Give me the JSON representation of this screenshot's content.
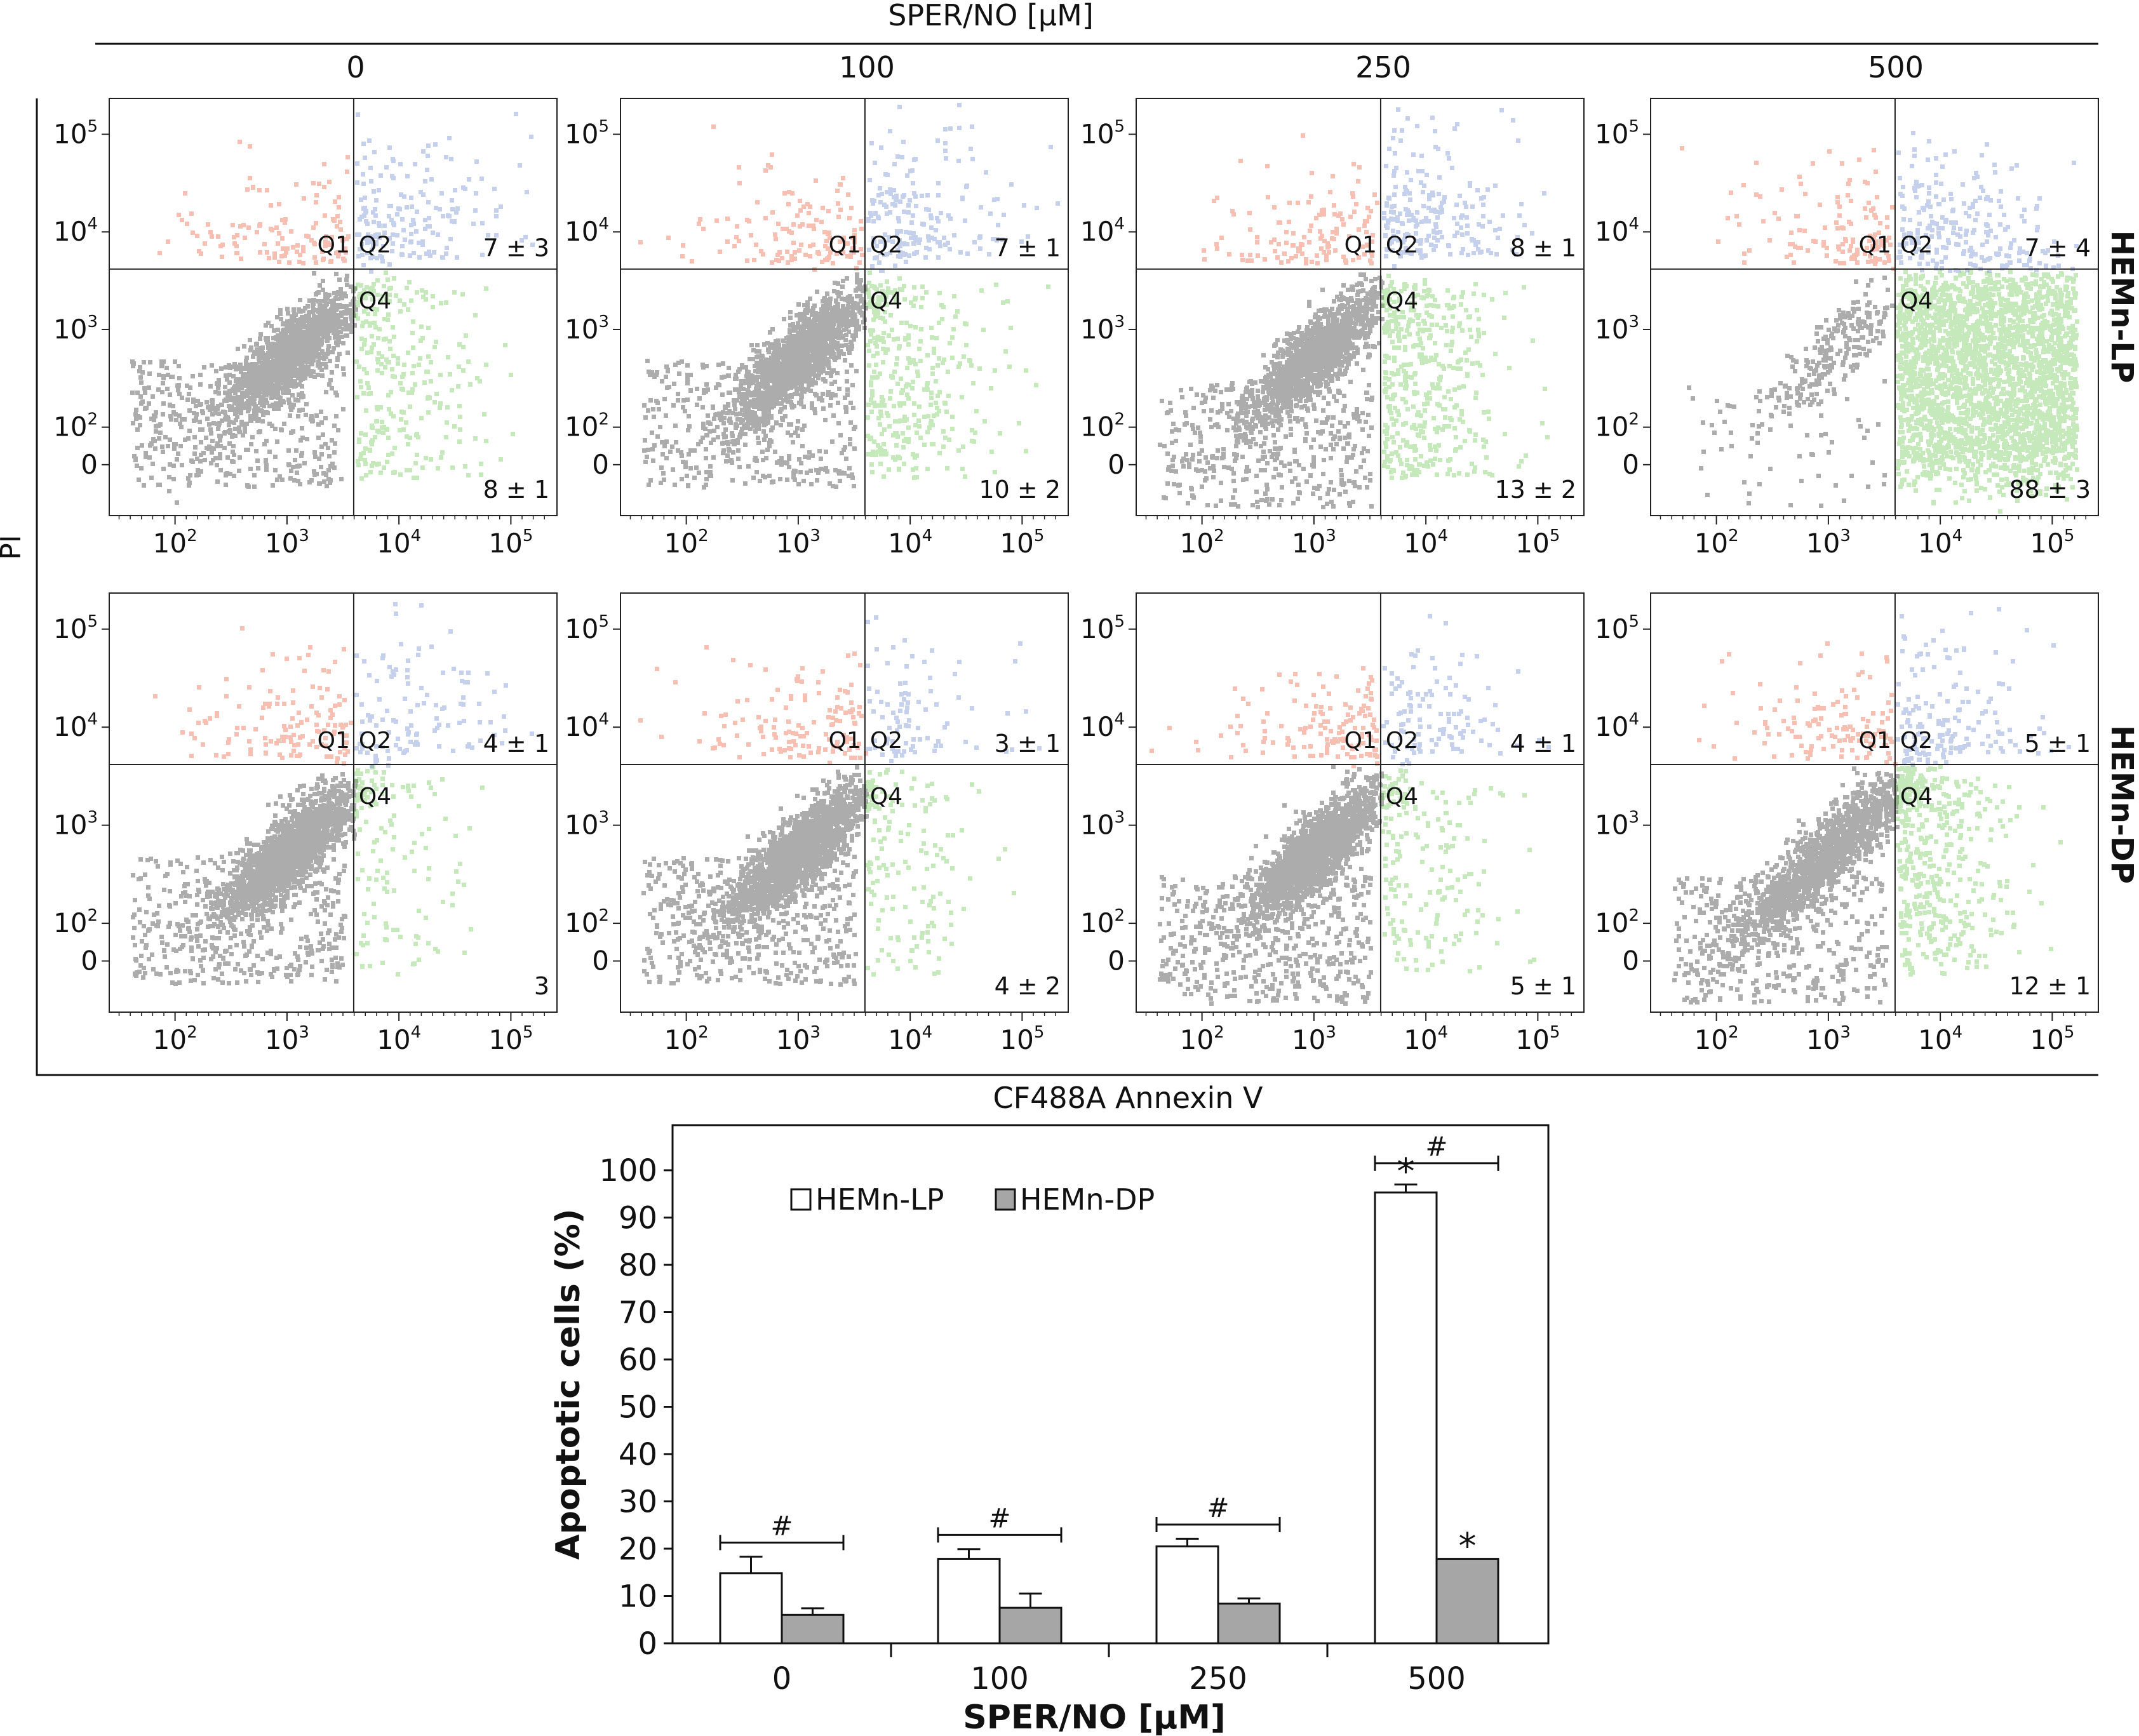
{
  "figure": {
    "top_title": "SPER/NO [µM]",
    "concentrations": [
      "0",
      "100",
      "250",
      "500"
    ],
    "y_axis_label": "PI",
    "x_axis_label": "CF488A Annexin V",
    "row_labels": [
      "HEMn-LP",
      "HEMn-DP"
    ],
    "quadrant_labels": {
      "q1": "Q1",
      "q2": "Q2",
      "q4": "Q4"
    },
    "flow_x_ticks": [
      {
        "base": "10",
        "exp": "2"
      },
      {
        "base": "10",
        "exp": "3"
      },
      {
        "base": "10",
        "exp": "4"
      },
      {
        "base": "10",
        "exp": "5"
      }
    ],
    "flow_y_ticks": [
      {
        "base": "0",
        "exp": ""
      },
      {
        "base": "10",
        "exp": "2"
      },
      {
        "base": "10",
        "exp": "3"
      },
      {
        "base": "10",
        "exp": "4"
      },
      {
        "base": "10",
        "exp": "5"
      }
    ],
    "quadrant_colors": {
      "q1": "#e8603c",
      "q2": "#5a78cc",
      "q3": "#111111",
      "q4": "#5cbf40"
    },
    "panels": [
      [
        {
          "conc": "0",
          "q2_value": "7 ± 3",
          "q4_value": "8 ± 1"
        },
        {
          "conc": "100",
          "q2_value": "7 ± 1",
          "q4_value": "10 ± 2"
        },
        {
          "conc": "250",
          "q2_value": "8 ± 1",
          "q4_value": "13 ± 2"
        },
        {
          "conc": "500",
          "q2_value": "7 ± 4",
          "q4_value": "88 ± 3"
        }
      ],
      [
        {
          "conc": "0",
          "q2_value": "4 ± 1",
          "q4_value": "3"
        },
        {
          "conc": "100",
          "q2_value": "3 ± 1",
          "q4_value": "4 ± 2"
        },
        {
          "conc": "250",
          "q2_value": "4 ± 1",
          "q4_value": "5 ± 1"
        },
        {
          "conc": "500",
          "q2_value": "5 ± 1",
          "q4_value": "12 ± 1"
        }
      ]
    ]
  },
  "chart_data": {
    "type": "bar",
    "categories": [
      "0",
      "100",
      "250",
      "500"
    ],
    "xlabel": "SPER/NO [µM]",
    "ylabel": "Apoptotic cells (%)",
    "ylim": [
      0,
      100
    ],
    "yticks": [
      0,
      10,
      20,
      30,
      40,
      50,
      60,
      70,
      80,
      90,
      100
    ],
    "legend_position": "top-left",
    "series": [
      {
        "name": "HEMn-LP",
        "color": "#ffffff",
        "values": [
          14.8,
          17.8,
          20.5,
          95.3
        ],
        "errors": [
          3.5,
          2.1,
          1.6,
          1.7
        ]
      },
      {
        "name": "HEMn-DP",
        "color": "#a6a6a6",
        "values": [
          6.0,
          7.5,
          8.4,
          17.8
        ],
        "errors": [
          1.4,
          3.0,
          1.1,
          0
        ]
      }
    ],
    "annotations": {
      "hash_symbol": "#",
      "star_symbol": "*",
      "hash_brackets": [
        "0",
        "100",
        "250",
        "500"
      ],
      "stars": [
        {
          "category": "500",
          "series": "HEMn-LP"
        },
        {
          "category": "500",
          "series": "HEMn-DP"
        }
      ]
    }
  }
}
